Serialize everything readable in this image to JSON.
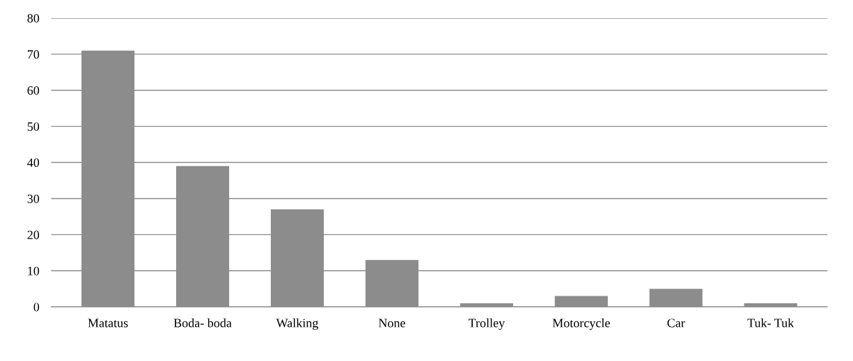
{
  "chart_data": {
    "type": "bar",
    "categories": [
      "Matatus",
      "Boda- boda",
      "Walking",
      "None",
      "Trolley",
      "Motorcycle",
      "Car",
      "Tuk- Tuk"
    ],
    "values": [
      71,
      39,
      27,
      13,
      1,
      3,
      5,
      1
    ],
    "color": "#8c8c8c",
    "ylim": [
      0,
      80
    ],
    "yticks": [
      0,
      10,
      20,
      30,
      40,
      50,
      60,
      70,
      80
    ],
    "grid": "y"
  }
}
